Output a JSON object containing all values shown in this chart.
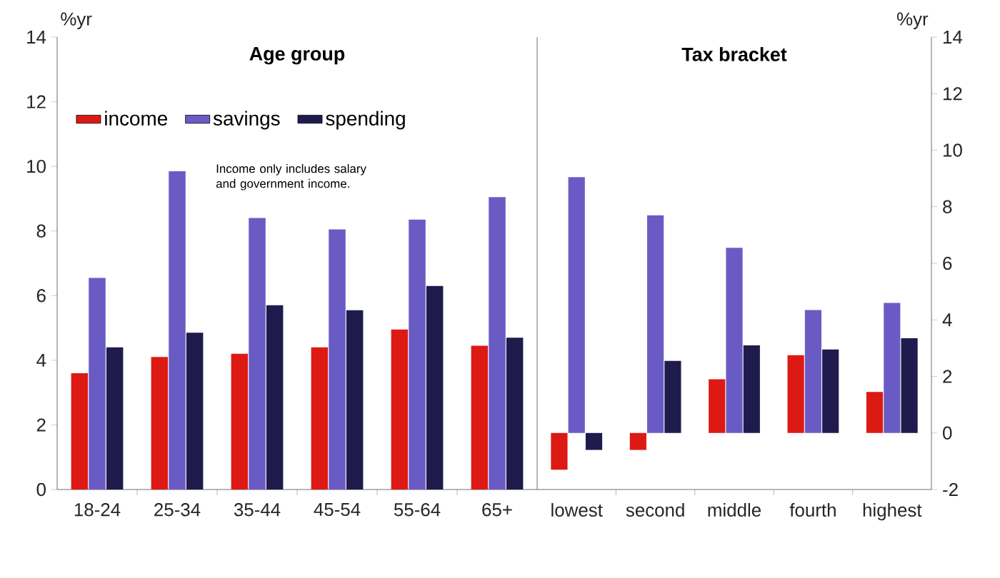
{
  "chart_data": [
    {
      "type": "bar",
      "title": "Age group",
      "ylabel": "%yr",
      "categories": [
        "18-24",
        "25-34",
        "35-44",
        "45-54",
        "55-64",
        "65+"
      ],
      "series": [
        {
          "name": "income",
          "color": "#dc1a13",
          "values": [
            3.6,
            4.1,
            4.2,
            4.4,
            4.95,
            4.45
          ]
        },
        {
          "name": "savings",
          "color": "#6a5bc4",
          "values": [
            6.55,
            9.85,
            8.4,
            8.05,
            8.35,
            9.05
          ]
        },
        {
          "name": "spending",
          "color": "#1f1b4d",
          "values": [
            4.4,
            4.85,
            5.7,
            5.55,
            6.3,
            4.7
          ]
        }
      ],
      "ylim": [
        0,
        14
      ],
      "yticks": [
        0,
        2,
        4,
        6,
        8,
        10,
        12,
        14
      ],
      "legend": "top left",
      "grid": false,
      "annotations": [
        "Income only includes salary and government income."
      ]
    },
    {
      "type": "bar",
      "title": "Tax bracket",
      "ylabel": "%yr",
      "categories": [
        "lowest",
        "second",
        "middle",
        "fourth",
        "highest"
      ],
      "series": [
        {
          "color": "#dc1a13",
          "values": [
            -1.3,
            -0.6,
            1.9,
            2.75,
            1.45
          ]
        },
        {
          "color": "#6a5bc4",
          "values": [
            9.05,
            7.7,
            6.55,
            4.35,
            4.6
          ]
        },
        {
          "color": "#1f1b4d",
          "values": [
            -0.6,
            2.55,
            3.1,
            2.95,
            3.35
          ]
        }
      ],
      "ylim": [
        -2,
        14
      ],
      "yticks": [
        -2,
        0,
        2,
        4,
        6,
        8,
        10,
        12,
        14
      ],
      "grid": false
    }
  ]
}
